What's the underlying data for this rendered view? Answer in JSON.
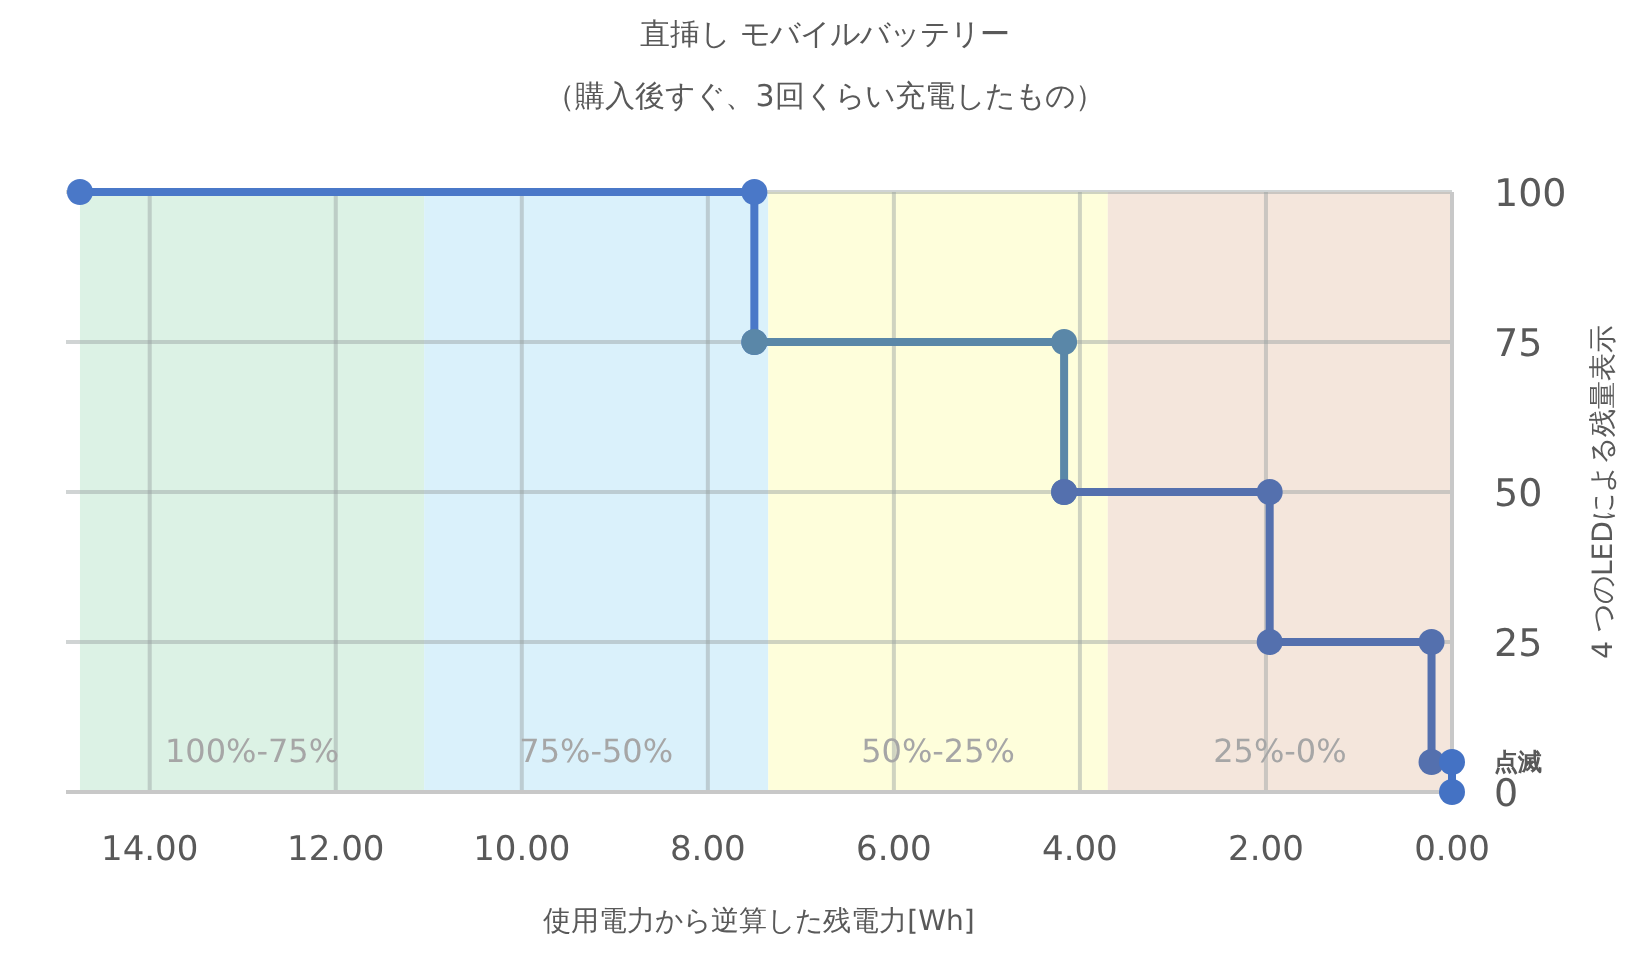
{
  "chart_data": {
    "type": "line",
    "title": "直挿し モバイルバッテリー",
    "subtitle": "（購入後すぐ、3回くらい充電したもの）",
    "xlabel": "使用電力から逆算した残電力[Wh]",
    "ylabel": "4 つのLEDによる残量表示",
    "series": [
      {
        "color": "#4a78c8",
        "x": [
          14.75,
          7.5,
          7.5
        ],
        "values": [
          100,
          100,
          75
        ]
      },
      {
        "color": "#5a87a8",
        "x": [
          7.5,
          4.17,
          4.17
        ],
        "values": [
          75,
          75,
          50
        ]
      },
      {
        "color": "#5470ae",
        "x": [
          4.17,
          1.96,
          1.96,
          0.22,
          0.22
        ],
        "values": [
          50,
          50,
          25,
          25,
          5
        ]
      },
      {
        "color": "#4472c4",
        "x": [
          0,
          0
        ],
        "values": [
          5,
          0
        ]
      }
    ],
    "xlim": [
      14.9,
      0
    ],
    "ylim": [
      0,
      100
    ],
    "xticks": [
      {
        "value": 14,
        "label": "14.00"
      },
      {
        "value": 12,
        "label": "12.00"
      },
      {
        "value": 10,
        "label": "10.00"
      },
      {
        "value": 8,
        "label": "8.00"
      },
      {
        "value": 6,
        "label": "6.00"
      },
      {
        "value": 4,
        "label": "4.00"
      },
      {
        "value": 2,
        "label": "2.00"
      },
      {
        "value": 0,
        "label": "0.00"
      }
    ],
    "yticks": [
      0,
      25,
      50,
      75,
      100
    ],
    "bands": [
      {
        "axis": "x",
        "from": 14.75,
        "to": 11.05,
        "label": "100%-75%",
        "color": "#dcf2e5"
      },
      {
        "axis": "x",
        "from": 11.05,
        "to": 7.35,
        "label": "75%-50%",
        "color": "#daf1fb"
      },
      {
        "axis": "x",
        "from": 7.35,
        "to": 3.7,
        "label": "50%-25%",
        "color": "#fefedb"
      },
      {
        "axis": "x",
        "from": 3.7,
        "to": 0,
        "label": "25%-0%",
        "color": "#f4e6dc"
      }
    ],
    "annotations": [
      {
        "text": "点滅",
        "x": 0,
        "y": 5
      }
    ],
    "grid": true,
    "marker": "circle",
    "line_style": "solid"
  }
}
